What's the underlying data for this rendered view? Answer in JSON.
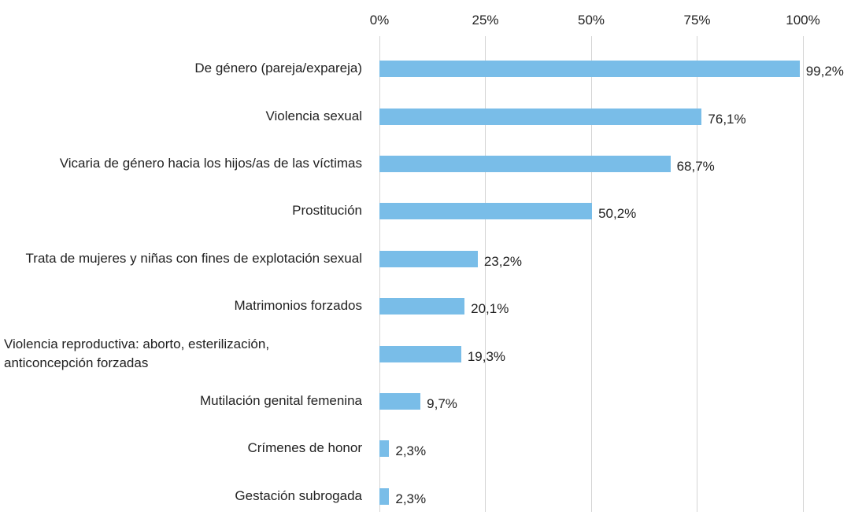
{
  "chart_data": {
    "type": "bar",
    "orientation": "horizontal",
    "categories": [
      "De género (pareja/expareja)",
      "Violencia sexual",
      "Vicaria de género hacia los hijos/as de las víctimas",
      "Prostitución",
      "Trata de mujeres y niñas con fines de explotación sexual",
      "Matrimonios forzados",
      "Violencia reproductiva: aborto, esterilización, anticoncepción forzadas",
      "Mutilación genital femenina",
      "Crímenes de honor",
      "Gestación subrogada"
    ],
    "values": [
      99.2,
      76.1,
      68.7,
      50.2,
      23.2,
      20.1,
      19.3,
      9.7,
      2.3,
      2.3
    ],
    "value_labels": [
      "99,2%",
      "76,1%",
      "68,7%",
      "50,2%",
      "23,2%",
      "20,1%",
      "19,3%",
      "9,7%",
      "2,3%",
      "2,3%"
    ],
    "color": "#79bde8",
    "xlim": [
      0,
      100
    ],
    "xticks": [
      {
        "value": 0,
        "label": "0%"
      },
      {
        "value": 25,
        "label": "25%"
      },
      {
        "value": 50,
        "label": "50%"
      },
      {
        "value": 75,
        "label": "75%"
      },
      {
        "value": 100,
        "label": "100%"
      }
    ],
    "grid": true
  }
}
